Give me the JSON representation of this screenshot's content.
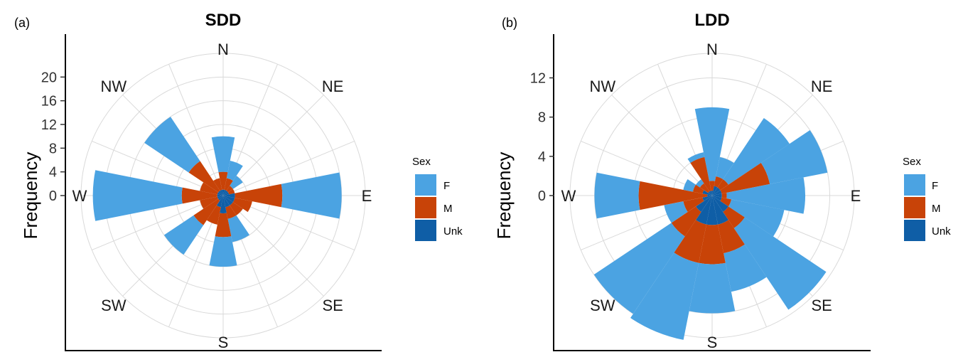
{
  "figure": {
    "colors": {
      "F": "#4ba3e2",
      "M": "#c84308",
      "Unk": "#0f5ea6",
      "grid": "#d9d9d9",
      "axis": "#000000"
    },
    "direction_labels": [
      "N",
      "NE",
      "E",
      "SE",
      "S",
      "SW",
      "W",
      "NW"
    ]
  },
  "chart_data": [
    {
      "type": "polar-stacked-bar",
      "panel_label": "(a)",
      "title": "SDD",
      "ylabel": "Frequency",
      "yticks": [
        0,
        4,
        8,
        12,
        16,
        20
      ],
      "rlim": [
        0,
        24
      ],
      "grid": true,
      "legend": {
        "title": "Sex",
        "entries": [
          "F",
          "M",
          "Unk"
        ],
        "position": "right"
      },
      "bins": 16,
      "bin_centers_deg": [
        0,
        22.5,
        45,
        67.5,
        90,
        112.5,
        135,
        157.5,
        180,
        202.5,
        225,
        247.5,
        270,
        292.5,
        315,
        337.5
      ],
      "series": [
        {
          "name": "Unk",
          "values": [
            1,
            1,
            1,
            1,
            2,
            2,
            2,
            2,
            3,
            2,
            1,
            1,
            1,
            1,
            1,
            1
          ]
        },
        {
          "name": "M",
          "values": [
            3,
            2,
            1,
            1,
            8,
            3,
            2,
            2,
            4,
            3,
            5,
            3,
            6,
            3,
            6,
            2
          ]
        },
        {
          "name": "F",
          "values": [
            6,
            3,
            2,
            0,
            10,
            0,
            0,
            4,
            5,
            0,
            6,
            0,
            15,
            0,
            9,
            0
          ]
        }
      ]
    },
    {
      "type": "polar-stacked-bar",
      "panel_label": "(b)",
      "title": "LDD",
      "ylabel": "Frequency",
      "yticks": [
        0,
        4,
        8,
        12
      ],
      "rlim": [
        0,
        14.5
      ],
      "grid": true,
      "legend": {
        "title": "Sex",
        "entries": [
          "F",
          "M",
          "Unk"
        ],
        "position": "right"
      },
      "bins": 16,
      "bin_centers_deg": [
        0,
        22.5,
        45,
        67.5,
        90,
        112.5,
        135,
        157.5,
        180,
        202.5,
        225,
        247.5,
        270,
        292.5,
        315,
        337.5
      ],
      "series": [
        {
          "name": "Unk",
          "values": [
            0.5,
            1,
            1,
            1,
            1,
            1,
            2,
            3,
            3,
            3,
            2,
            1,
            0.5,
            1,
            0.5,
            0.5
          ]
        },
        {
          "name": "M",
          "values": [
            1,
            1,
            1,
            5,
            0.5,
            1,
            2,
            3,
            4,
            4,
            3,
            2,
            7,
            1,
            1,
            3.5
          ]
        },
        {
          "name": "F",
          "values": [
            7.5,
            2,
            7.5,
            6,
            8,
            5.5,
            10,
            4,
            5,
            8,
            9.5,
            2,
            4.5,
            1,
            0.5,
            0.5
          ]
        }
      ]
    }
  ]
}
